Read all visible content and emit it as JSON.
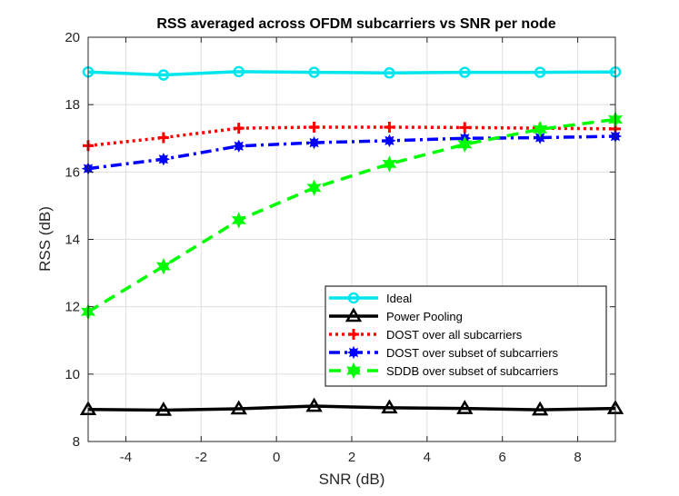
{
  "chart_data": {
    "type": "line",
    "title": "RSS averaged across OFDM subcarriers vs SNR per node",
    "xlabel": "SNR (dB)",
    "ylabel": "RSS (dB)",
    "xlim": [
      -5,
      9
    ],
    "ylim": [
      8,
      20
    ],
    "xticks": [
      -4,
      -2,
      0,
      2,
      4,
      6,
      8
    ],
    "yticks": [
      8,
      10,
      12,
      14,
      16,
      18,
      20
    ],
    "grid": true,
    "legend_position": "bottom-right",
    "x": [
      -5,
      -3,
      -1,
      1,
      3,
      5,
      7,
      9
    ],
    "series": [
      {
        "name": "Ideal",
        "color": "#00e5ee",
        "marker": "circle",
        "dash": "solid",
        "values": [
          18.97,
          18.88,
          18.98,
          18.96,
          18.94,
          18.96,
          18.96,
          18.97
        ]
      },
      {
        "name": "Power Pooling",
        "color": "#000000",
        "marker": "triangle",
        "dash": "solid",
        "values": [
          8.95,
          8.93,
          8.97,
          9.05,
          9.0,
          8.98,
          8.94,
          8.98
        ]
      },
      {
        "name": "DOST over all subcarriers",
        "color": "#ff0000",
        "marker": "plus",
        "dash": "dotted",
        "values": [
          16.78,
          17.02,
          17.3,
          17.33,
          17.33,
          17.32,
          17.3,
          17.28
        ]
      },
      {
        "name": "DOST over subset of subcarriers",
        "color": "#0000ff",
        "marker": "star-dot",
        "dash": "dashdot",
        "values": [
          16.1,
          16.38,
          16.77,
          16.87,
          16.93,
          17.0,
          17.02,
          17.06
        ]
      },
      {
        "name": "SDDB over subset of subcarriers",
        "color": "#00ff00",
        "marker": "hexagram",
        "dash": "dashed",
        "values": [
          11.85,
          13.2,
          14.57,
          15.53,
          16.24,
          16.82,
          17.27,
          17.56
        ]
      }
    ]
  }
}
